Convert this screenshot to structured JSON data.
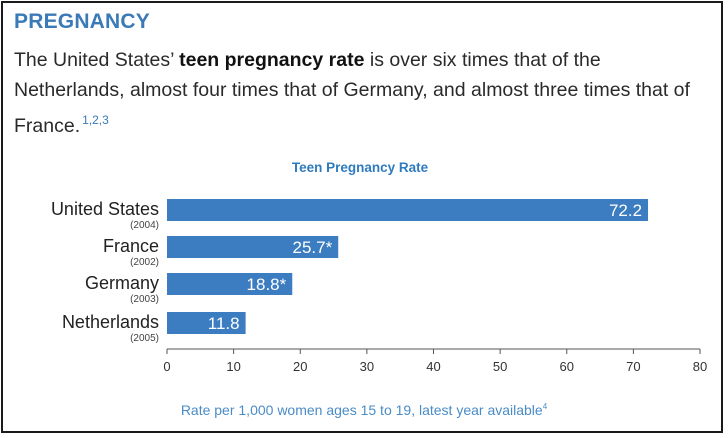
{
  "heading": "PREGNANCY",
  "intro": {
    "before": "The United States’ ",
    "bold": "teen pregnancy rate",
    "after": " is over six times that of the Netherlands, almost four times that of Germany, and almost three times that of France.",
    "refs": "1,2,3"
  },
  "chart_data": {
    "type": "bar",
    "orientation": "horizontal",
    "title": "Teen Pregnancy Rate",
    "categories": [
      "United States",
      "France",
      "Germany",
      "Netherlands"
    ],
    "years": [
      "(2004)",
      "(2002)",
      "(2003)",
      "(2005)"
    ],
    "values": [
      72.2,
      25.7,
      18.8,
      11.8
    ],
    "value_labels": [
      "72.2",
      "25.7*",
      "18.8*",
      "11.8"
    ],
    "xticks": [
      "0",
      "10",
      "20",
      "30",
      "40",
      "50",
      "60",
      "70",
      "80"
    ],
    "xlim": [
      0,
      80
    ],
    "bar_color": "#3c7cc0",
    "caption": "Rate per 1,000 women ages 15 to 19, latest year available",
    "caption_ref": "4"
  }
}
